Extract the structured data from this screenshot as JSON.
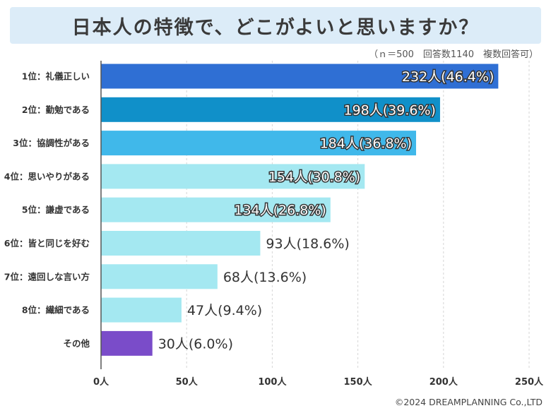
{
  "title": "日本人の特徴で、どこがよいと思いますか？",
  "note": "（ｎ＝500　回答数1140　複数回答可）",
  "copyright": "©2024 DREAMPLANNING Co.,LTD",
  "chart_data": {
    "type": "bar",
    "orientation": "horizontal",
    "title": "日本人の特徴で、どこがよいと思いますか？",
    "xlabel": "",
    "ylabel": "",
    "xlim": [
      0,
      250
    ],
    "ticks": [
      0,
      50,
      100,
      150,
      200,
      250
    ],
    "tick_labels": [
      "0人",
      "50人",
      "100人",
      "150人",
      "200人",
      "250人"
    ],
    "categories": [
      "1位：礼儀正しい",
      "2位：勤勉である",
      "3位：協調性がある",
      "4位：思いやりがある",
      "5位：謙虚である",
      "6位：皆と同じを好む",
      "7位：遠回しな言い方",
      "8位：繊細である",
      "その他"
    ],
    "values": [
      232,
      198,
      184,
      154,
      134,
      93,
      68,
      47,
      30
    ],
    "data_labels": [
      "232人(46.4%)",
      "198人(39.6%)",
      "184人(36.8%)",
      "154人(30.8%)",
      "134人(26.8%)",
      "93人(18.6%)",
      "68人(13.6%)",
      "47人(9.4%)",
      "30人(6.0%)"
    ],
    "colors": [
      "#2f6fd4",
      "#1090c9",
      "#40b8ea",
      "#a4e8f1",
      "#a4e8f1",
      "#a4e8f1",
      "#a4e8f1",
      "#a4e8f1",
      "#7a4cc9"
    ],
    "grid": true
  }
}
